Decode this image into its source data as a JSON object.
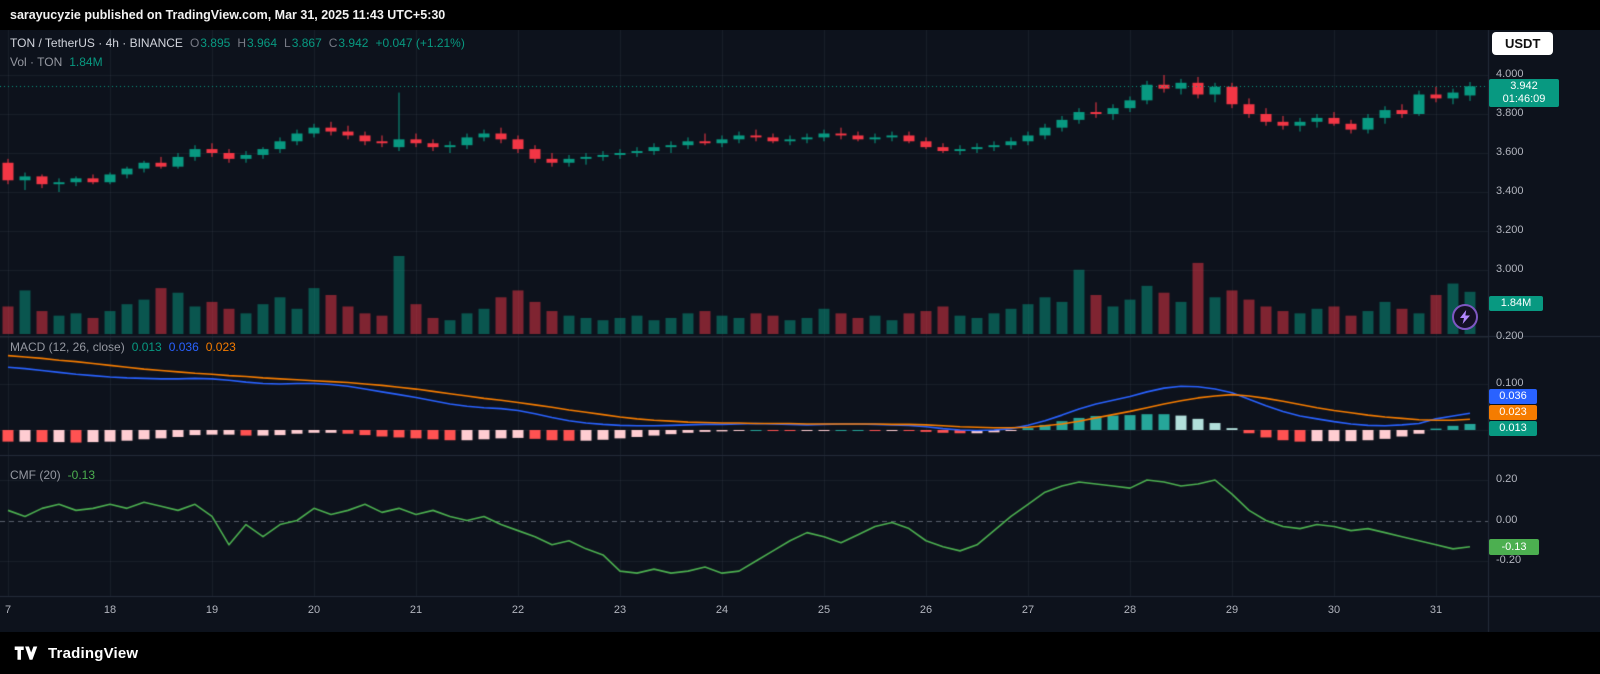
{
  "publish_bar": {
    "text": "sarayucyzie published on TradingView.com, Mar 31, 2025 11:43 UTC+5:30"
  },
  "toolbar": {
    "currency_button": "USDT"
  },
  "main_pane": {
    "legend": {
      "symbol": "TON / TetherUS · 4h · BINANCE",
      "ohlc": [
        {
          "label": "O",
          "value": "3.895"
        },
        {
          "label": "H",
          "value": "3.964"
        },
        {
          "label": "L",
          "value": "3.867"
        },
        {
          "label": "C",
          "value": "3.942"
        }
      ],
      "change": "+0.047 (+1.21%)"
    },
    "volume_legend": {
      "label": "Vol · TON",
      "value": "1.84M"
    },
    "price_badge": {
      "price": "3.942",
      "countdown": "01:46:09"
    },
    "volume_badge": "1.84M",
    "axis_labels": [
      "4.000",
      "3.800",
      "3.600",
      "3.400",
      "3.200",
      "3.000"
    ]
  },
  "macd_pane": {
    "legend": {
      "title": "MACD (12, 26, close)",
      "hist_value": "0.013",
      "macd_value": "0.036",
      "signal_value": "0.023"
    },
    "badges": {
      "macd": "0.036",
      "signal": "0.023",
      "hist": "0.013"
    },
    "axis_labels": [
      "0.200",
      "0.100"
    ]
  },
  "cmf_pane": {
    "legend": {
      "title": "CMF (20)",
      "value": "-0.13"
    },
    "badge": "-0.13",
    "axis_labels": [
      "0.20",
      "0.00",
      "-0.20"
    ]
  },
  "time_axis": {
    "labels": [
      "7",
      "18",
      "19",
      "20",
      "21",
      "22",
      "23",
      "24",
      "25",
      "26",
      "27",
      "28",
      "29",
      "30",
      "31"
    ]
  },
  "footer": {
    "brand": "TradingView"
  },
  "colors": {
    "up": "#089981",
    "down": "#f23645",
    "vol_up": "rgba(8,153,129,0.5)",
    "vol_down": "rgba(242,54,69,0.5)",
    "macd_line": "#2962ff",
    "signal_line": "#f57c00",
    "hist_up": "#26a69a",
    "hist_up_light": "#b2dfdb",
    "hist_down": "#ff5252",
    "hist_down_light": "#ffcdd2",
    "cmf_line": "#4caf50",
    "grid": "rgba(125,135,155,0.10)",
    "separator": "#232a38"
  },
  "chart_data": [
    {
      "type": "candlestick",
      "symbol": "TON/USDT",
      "interval": "4h",
      "exchange": "BINANCE",
      "last_price": 3.942,
      "ylim": [
        3.0,
        4.23
      ],
      "x_day_labels": [
        "7",
        "18",
        "19",
        "20",
        "21",
        "22",
        "23",
        "24",
        "25",
        "26",
        "27",
        "28",
        "29",
        "30",
        "31"
      ],
      "ohlc": [
        [
          3.55,
          3.57,
          3.44,
          3.46
        ],
        [
          3.46,
          3.5,
          3.41,
          3.48
        ],
        [
          3.48,
          3.49,
          3.42,
          3.44
        ],
        [
          3.44,
          3.47,
          3.4,
          3.45
        ],
        [
          3.45,
          3.48,
          3.43,
          3.47
        ],
        [
          3.47,
          3.49,
          3.44,
          3.45
        ],
        [
          3.45,
          3.5,
          3.44,
          3.49
        ],
        [
          3.49,
          3.53,
          3.47,
          3.52
        ],
        [
          3.52,
          3.56,
          3.5,
          3.55
        ],
        [
          3.55,
          3.58,
          3.52,
          3.53
        ],
        [
          3.53,
          3.6,
          3.52,
          3.58
        ],
        [
          3.58,
          3.64,
          3.56,
          3.62
        ],
        [
          3.62,
          3.65,
          3.58,
          3.6
        ],
        [
          3.6,
          3.62,
          3.55,
          3.57
        ],
        [
          3.57,
          3.61,
          3.55,
          3.59
        ],
        [
          3.59,
          3.63,
          3.57,
          3.62
        ],
        [
          3.62,
          3.68,
          3.6,
          3.66
        ],
        [
          3.66,
          3.72,
          3.64,
          3.7
        ],
        [
          3.7,
          3.75,
          3.68,
          3.73
        ],
        [
          3.73,
          3.76,
          3.69,
          3.71
        ],
        [
          3.71,
          3.74,
          3.67,
          3.69
        ],
        [
          3.69,
          3.71,
          3.64,
          3.66
        ],
        [
          3.66,
          3.69,
          3.63,
          3.65
        ],
        [
          3.63,
          3.91,
          3.61,
          3.67
        ],
        [
          3.67,
          3.7,
          3.63,
          3.65
        ],
        [
          3.65,
          3.67,
          3.61,
          3.63
        ],
        [
          3.63,
          3.66,
          3.6,
          3.64
        ],
        [
          3.64,
          3.7,
          3.62,
          3.68
        ],
        [
          3.68,
          3.72,
          3.66,
          3.7
        ],
        [
          3.7,
          3.73,
          3.65,
          3.67
        ],
        [
          3.67,
          3.69,
          3.6,
          3.62
        ],
        [
          3.62,
          3.64,
          3.55,
          3.57
        ],
        [
          3.57,
          3.6,
          3.53,
          3.55
        ],
        [
          3.55,
          3.59,
          3.53,
          3.57
        ],
        [
          3.57,
          3.6,
          3.54,
          3.58
        ],
        [
          3.58,
          3.61,
          3.56,
          3.59
        ],
        [
          3.59,
          3.62,
          3.57,
          3.6
        ],
        [
          3.6,
          3.63,
          3.58,
          3.61
        ],
        [
          3.61,
          3.65,
          3.59,
          3.63
        ],
        [
          3.63,
          3.66,
          3.6,
          3.64
        ],
        [
          3.64,
          3.68,
          3.62,
          3.66
        ],
        [
          3.66,
          3.7,
          3.64,
          3.65
        ],
        [
          3.65,
          3.69,
          3.63,
          3.67
        ],
        [
          3.67,
          3.71,
          3.65,
          3.69
        ],
        [
          3.69,
          3.72,
          3.66,
          3.68
        ],
        [
          3.68,
          3.7,
          3.65,
          3.66
        ],
        [
          3.66,
          3.69,
          3.64,
          3.67
        ],
        [
          3.67,
          3.7,
          3.65,
          3.68
        ],
        [
          3.68,
          3.72,
          3.66,
          3.7
        ],
        [
          3.7,
          3.73,
          3.67,
          3.69
        ],
        [
          3.69,
          3.71,
          3.66,
          3.67
        ],
        [
          3.67,
          3.7,
          3.65,
          3.68
        ],
        [
          3.68,
          3.71,
          3.66,
          3.69
        ],
        [
          3.69,
          3.71,
          3.65,
          3.66
        ],
        [
          3.66,
          3.68,
          3.62,
          3.63
        ],
        [
          3.63,
          3.65,
          3.6,
          3.61
        ],
        [
          3.61,
          3.64,
          3.59,
          3.62
        ],
        [
          3.62,
          3.65,
          3.6,
          3.63
        ],
        [
          3.63,
          3.66,
          3.61,
          3.64
        ],
        [
          3.64,
          3.68,
          3.62,
          3.66
        ],
        [
          3.66,
          3.71,
          3.64,
          3.69
        ],
        [
          3.69,
          3.75,
          3.67,
          3.73
        ],
        [
          3.73,
          3.79,
          3.71,
          3.77
        ],
        [
          3.77,
          3.83,
          3.75,
          3.81
        ],
        [
          3.81,
          3.86,
          3.78,
          3.8
        ],
        [
          3.8,
          3.85,
          3.77,
          3.83
        ],
        [
          3.83,
          3.89,
          3.81,
          3.87
        ],
        [
          3.87,
          3.97,
          3.85,
          3.95
        ],
        [
          3.95,
          4.0,
          3.91,
          3.93
        ],
        [
          3.93,
          3.98,
          3.9,
          3.96
        ],
        [
          3.96,
          3.99,
          3.88,
          3.9
        ],
        [
          3.9,
          3.96,
          3.86,
          3.94
        ],
        [
          3.94,
          3.96,
          3.83,
          3.85
        ],
        [
          3.85,
          3.88,
          3.78,
          3.8
        ],
        [
          3.8,
          3.83,
          3.74,
          3.76
        ],
        [
          3.76,
          3.79,
          3.72,
          3.74
        ],
        [
          3.74,
          3.78,
          3.71,
          3.76
        ],
        [
          3.76,
          3.8,
          3.73,
          3.78
        ],
        [
          3.78,
          3.81,
          3.74,
          3.75
        ],
        [
          3.75,
          3.77,
          3.7,
          3.72
        ],
        [
          3.72,
          3.8,
          3.7,
          3.78
        ],
        [
          3.78,
          3.84,
          3.75,
          3.82
        ],
        [
          3.82,
          3.85,
          3.78,
          3.8
        ],
        [
          3.8,
          3.92,
          3.79,
          3.9
        ],
        [
          3.9,
          3.94,
          3.86,
          3.88
        ],
        [
          3.88,
          3.93,
          3.85,
          3.91
        ],
        [
          3.895,
          3.964,
          3.867,
          3.942
        ]
      ],
      "volume_m": [
        1.2,
        1.9,
        1.0,
        0.8,
        0.9,
        0.7,
        1.0,
        1.3,
        1.5,
        2.0,
        1.8,
        1.2,
        1.4,
        1.1,
        0.9,
        1.3,
        1.6,
        1.1,
        2.0,
        1.7,
        1.2,
        0.9,
        0.8,
        3.4,
        1.3,
        0.7,
        0.6,
        0.9,
        1.1,
        1.6,
        1.9,
        1.4,
        1.0,
        0.8,
        0.7,
        0.6,
        0.7,
        0.8,
        0.6,
        0.7,
        0.9,
        1.0,
        0.8,
        0.7,
        0.9,
        0.8,
        0.6,
        0.7,
        1.1,
        0.9,
        0.7,
        0.8,
        0.6,
        0.9,
        1.0,
        1.2,
        0.8,
        0.7,
        0.9,
        1.1,
        1.3,
        1.6,
        1.4,
        2.8,
        1.7,
        1.2,
        1.5,
        2.1,
        1.8,
        1.4,
        3.1,
        1.6,
        1.9,
        1.5,
        1.2,
        1.0,
        0.9,
        1.1,
        1.2,
        0.8,
        1.0,
        1.4,
        1.1,
        0.9,
        1.7,
        2.2,
        1.84
      ],
      "last_volume": "1.84M"
    },
    {
      "type": "line",
      "name": "MACD",
      "params": "12, 26, close",
      "ylim": [
        -0.06,
        0.21
      ],
      "macd": [
        0.135,
        0.132,
        0.128,
        0.124,
        0.12,
        0.117,
        0.114,
        0.112,
        0.111,
        0.11,
        0.11,
        0.111,
        0.11,
        0.107,
        0.103,
        0.1,
        0.099,
        0.1,
        0.1,
        0.098,
        0.094,
        0.088,
        0.082,
        0.076,
        0.07,
        0.063,
        0.056,
        0.051,
        0.048,
        0.046,
        0.042,
        0.035,
        0.027,
        0.02,
        0.015,
        0.012,
        0.01,
        0.009,
        0.009,
        0.01,
        0.011,
        0.012,
        0.012,
        0.013,
        0.014,
        0.013,
        0.012,
        0.011,
        0.012,
        0.013,
        0.013,
        0.012,
        0.011,
        0.01,
        0.007,
        0.003,
        0.0,
        -0.001,
        0.0,
        0.003,
        0.01,
        0.02,
        0.032,
        0.045,
        0.056,
        0.064,
        0.072,
        0.082,
        0.09,
        0.094,
        0.093,
        0.088,
        0.08,
        0.066,
        0.052,
        0.04,
        0.03,
        0.024,
        0.018,
        0.013,
        0.01,
        0.009,
        0.011,
        0.014,
        0.024,
        0.03,
        0.036
      ],
      "signal": [
        0.16,
        0.157,
        0.154,
        0.15,
        0.147,
        0.143,
        0.139,
        0.135,
        0.131,
        0.128,
        0.125,
        0.122,
        0.12,
        0.117,
        0.115,
        0.112,
        0.11,
        0.108,
        0.106,
        0.104,
        0.102,
        0.099,
        0.096,
        0.092,
        0.088,
        0.083,
        0.078,
        0.073,
        0.068,
        0.064,
        0.059,
        0.054,
        0.049,
        0.043,
        0.038,
        0.033,
        0.028,
        0.024,
        0.021,
        0.019,
        0.017,
        0.016,
        0.015,
        0.015,
        0.014,
        0.014,
        0.014,
        0.013,
        0.013,
        0.013,
        0.013,
        0.013,
        0.012,
        0.012,
        0.011,
        0.009,
        0.007,
        0.006,
        0.005,
        0.005,
        0.006,
        0.009,
        0.013,
        0.019,
        0.026,
        0.033,
        0.04,
        0.048,
        0.056,
        0.063,
        0.069,
        0.073,
        0.076,
        0.073,
        0.068,
        0.062,
        0.055,
        0.048,
        0.042,
        0.037,
        0.032,
        0.028,
        0.025,
        0.022,
        0.021,
        0.021,
        0.023
      ],
      "last_values": {
        "histogram": 0.013,
        "macd": 0.036,
        "signal": 0.023
      }
    },
    {
      "type": "line",
      "name": "CMF",
      "params": "20",
      "ylim": [
        -0.32,
        0.32
      ],
      "values": [
        0.05,
        0.02,
        0.06,
        0.08,
        0.05,
        0.06,
        0.08,
        0.06,
        0.09,
        0.07,
        0.05,
        0.08,
        0.02,
        -0.12,
        -0.02,
        -0.08,
        -0.02,
        0.0,
        0.06,
        0.03,
        0.05,
        0.08,
        0.04,
        0.06,
        0.03,
        0.05,
        0.02,
        0.0,
        0.02,
        -0.02,
        -0.05,
        -0.08,
        -0.12,
        -0.1,
        -0.14,
        -0.17,
        -0.25,
        -0.26,
        -0.24,
        -0.26,
        -0.25,
        -0.23,
        -0.26,
        -0.25,
        -0.2,
        -0.15,
        -0.1,
        -0.06,
        -0.08,
        -0.11,
        -0.07,
        -0.03,
        -0.01,
        -0.04,
        -0.1,
        -0.13,
        -0.15,
        -0.12,
        -0.05,
        0.02,
        0.08,
        0.14,
        0.17,
        0.19,
        0.18,
        0.17,
        0.16,
        0.2,
        0.19,
        0.17,
        0.18,
        0.2,
        0.13,
        0.05,
        0.0,
        -0.03,
        -0.04,
        -0.02,
        -0.03,
        -0.05,
        -0.04,
        -0.06,
        -0.08,
        -0.1,
        -0.12,
        -0.14,
        -0.13
      ],
      "last_value": -0.13
    }
  ]
}
